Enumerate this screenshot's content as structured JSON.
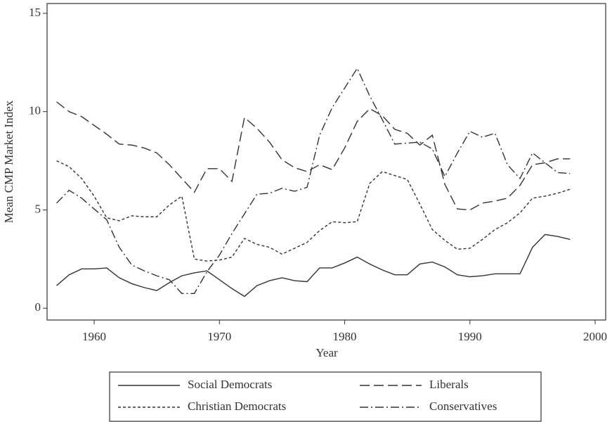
{
  "chart_data": {
    "type": "line",
    "xlabel": "Year",
    "ylabel": "Mean CMP Market Index",
    "x": [
      1957,
      1958,
      1959,
      1960,
      1961,
      1962,
      1963,
      1964,
      1965,
      1966,
      1967,
      1968,
      1969,
      1970,
      1971,
      1972,
      1973,
      1974,
      1975,
      1976,
      1977,
      1978,
      1979,
      1980,
      1981,
      1982,
      1983,
      1984,
      1985,
      1986,
      1987,
      1988,
      1989,
      1990,
      1991,
      1992,
      1993,
      1994,
      1995,
      1996,
      1997,
      1998
    ],
    "series": [
      {
        "name": "Social Democrats",
        "color": "#333333",
        "dash": "solid",
        "values": [
          1.15,
          1.7,
          2.0,
          2.0,
          2.05,
          1.55,
          1.25,
          1.05,
          0.9,
          1.3,
          1.65,
          1.8,
          1.9,
          1.45,
          1.0,
          0.6,
          1.15,
          1.4,
          1.55,
          1.4,
          1.35,
          2.05,
          2.05,
          2.3,
          2.6,
          2.25,
          1.95,
          1.7,
          1.7,
          2.25,
          2.35,
          2.1,
          1.7,
          1.6,
          1.65,
          1.75,
          1.75,
          1.75,
          3.1,
          3.75,
          3.65,
          3.5
        ]
      },
      {
        "name": "Liberals",
        "color": "#333333",
        "dash": "long-dash",
        "values": [
          10.5,
          10.0,
          9.75,
          9.3,
          8.85,
          8.35,
          8.3,
          8.15,
          7.9,
          7.3,
          6.6,
          5.9,
          7.1,
          7.1,
          6.45,
          9.7,
          9.15,
          8.45,
          7.55,
          7.15,
          6.95,
          7.3,
          7.05,
          8.15,
          9.5,
          10.15,
          9.8,
          9.1,
          8.9,
          8.3,
          8.8,
          6.3,
          5.05,
          5.0,
          5.35,
          5.45,
          5.6,
          6.25,
          7.3,
          7.4,
          7.6,
          7.6
        ]
      },
      {
        "name": "Christian Democrats",
        "color": "#333333",
        "dash": "short-dash",
        "values": [
          7.5,
          7.2,
          6.6,
          5.7,
          4.6,
          4.45,
          4.7,
          4.65,
          4.65,
          5.25,
          5.7,
          2.5,
          2.4,
          2.45,
          2.6,
          3.55,
          3.25,
          3.1,
          2.75,
          3.05,
          3.35,
          3.95,
          4.4,
          4.35,
          4.4,
          6.35,
          6.95,
          6.75,
          6.55,
          5.3,
          4.0,
          3.45,
          3.0,
          3.05,
          3.5,
          4.0,
          4.35,
          4.85,
          5.6,
          5.7,
          5.85,
          6.05
        ]
      },
      {
        "name": "Conservatives",
        "color": "#333333",
        "dash": "dash-dot",
        "values": [
          5.35,
          6.0,
          5.6,
          5.05,
          4.5,
          3.1,
          2.2,
          1.9,
          1.65,
          1.45,
          0.75,
          0.75,
          1.85,
          2.7,
          3.8,
          4.8,
          5.8,
          5.85,
          6.1,
          5.95,
          6.15,
          8.8,
          10.2,
          11.2,
          12.2,
          10.8,
          9.6,
          8.35,
          8.4,
          8.45,
          8.1,
          6.7,
          7.9,
          9.0,
          8.7,
          8.9,
          7.3,
          6.6,
          7.9,
          7.4,
          6.9,
          6.85
        ]
      }
    ],
    "xlim": [
      1956.24,
      2000.84
    ],
    "xticks": [
      1960,
      1970,
      1980,
      1990,
      2000
    ],
    "ylim": [
      -0.6,
      15.5
    ],
    "yticks": [
      0,
      5,
      10,
      15
    ],
    "grid": false,
    "legend": "bottom"
  }
}
